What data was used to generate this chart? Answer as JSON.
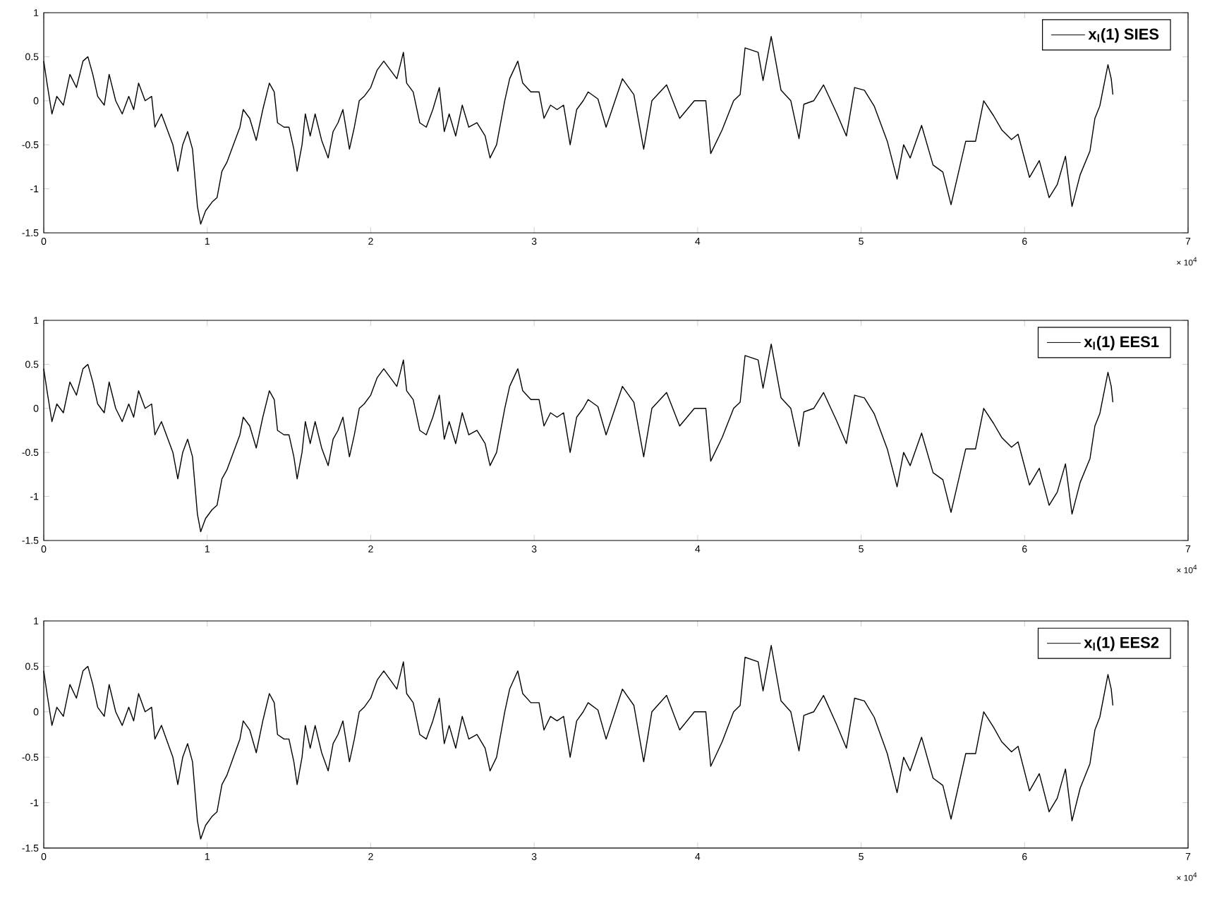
{
  "chart_data": [
    {
      "type": "line",
      "x": [
        0,
        0.02,
        0.05,
        0.08,
        0.12,
        0.16,
        0.2,
        0.24,
        0.27,
        0.3,
        0.33,
        0.37,
        0.4,
        0.44,
        0.48,
        0.52,
        0.55,
        0.58,
        0.62,
        0.66,
        0.68,
        0.72,
        0.75,
        0.79,
        0.82,
        0.85,
        0.88,
        0.91,
        0.94,
        0.96,
        0.99,
        1.03,
        1.06,
        1.09,
        1.12,
        1.16,
        1.2,
        1.22,
        1.26,
        1.3,
        1.34,
        1.38,
        1.41,
        1.43,
        1.47,
        1.5,
        1.53,
        1.55,
        1.58,
        1.6,
        1.63,
        1.66,
        1.7,
        1.74,
        1.77,
        1.8,
        1.83,
        1.87,
        1.9,
        1.93,
        1.96,
        2.0,
        2.04,
        2.08,
        2.12,
        2.16,
        2.2,
        2.22,
        2.26,
        2.3,
        2.34,
        2.38,
        2.42,
        2.45,
        2.48,
        2.52,
        2.56,
        2.6,
        2.65,
        2.7,
        2.73,
        2.77,
        2.82,
        2.85,
        2.9,
        2.93,
        2.98,
        3.03,
        3.06,
        3.1,
        3.14,
        3.18,
        3.22,
        3.26,
        3.3,
        3.33,
        3.39,
        3.44,
        3.54,
        3.61,
        3.67,
        3.72,
        3.81,
        3.89,
        3.98,
        4.05,
        4.08,
        4.15,
        4.22,
        4.26,
        4.29,
        4.37,
        4.4,
        4.45,
        4.51,
        4.57,
        4.62,
        4.65,
        4.71,
        4.77,
        4.85,
        4.91,
        4.96,
        5.02,
        5.08,
        5.16,
        5.22,
        5.26,
        5.3,
        5.37,
        5.44,
        5.5,
        5.55,
        5.6,
        5.64,
        5.7,
        5.75,
        5.81,
        5.86,
        5.92,
        5.96,
        6.03,
        6.09,
        6.15,
        6.2,
        6.25,
        6.29,
        6.34,
        6.4,
        6.43,
        6.46,
        6.51,
        6.53,
        6.54
      ],
      "series": [
        {
          "name": "x$_{l}$(1) SIES",
          "color": "#000000",
          "values": [
            0.45,
            0.2,
            -0.15,
            0.05,
            -0.05,
            0.3,
            0.15,
            0.45,
            0.5,
            0.3,
            0.05,
            -0.05,
            0.3,
            0.0,
            -0.15,
            0.05,
            -0.1,
            0.2,
            0.0,
            0.05,
            -0.3,
            -0.15,
            -0.3,
            -0.5,
            -0.8,
            -0.5,
            -0.35,
            -0.55,
            -1.2,
            -1.4,
            -1.25,
            -1.15,
            -1.1,
            -0.8,
            -0.7,
            -0.5,
            -0.3,
            -0.1,
            -0.2,
            -0.45,
            -0.1,
            0.2,
            0.1,
            -0.25,
            -0.3,
            -0.3,
            -0.55,
            -0.8,
            -0.5,
            -0.15,
            -0.4,
            -0.15,
            -0.45,
            -0.65,
            -0.35,
            -0.25,
            -0.1,
            -0.55,
            -0.3,
            0.0,
            0.05,
            0.15,
            0.35,
            0.45,
            0.35,
            0.25,
            0.55,
            0.2,
            0.1,
            -0.25,
            -0.3,
            -0.1,
            0.15,
            -0.35,
            -0.15,
            -0.4,
            -0.05,
            -0.3,
            -0.25,
            -0.4,
            -0.65,
            -0.5,
            0.0,
            0.25,
            0.45,
            0.2,
            0.1,
            0.1,
            -0.2,
            -0.05,
            -0.1,
            -0.05,
            -0.5,
            -0.1,
            0.0,
            0.1,
            0.02,
            -0.3,
            0.25,
            0.07,
            -0.55,
            0.0,
            0.18,
            -0.2,
            0.0,
            0.0,
            -0.6,
            -0.33,
            0.0,
            0.07,
            0.6,
            0.55,
            0.23,
            0.73,
            0.12,
            0.0,
            -0.43,
            -0.04,
            0.0,
            0.18,
            -0.14,
            -0.4,
            0.15,
            0.12,
            -0.06,
            -0.46,
            -0.89,
            -0.5,
            -0.65,
            -0.28,
            -0.73,
            -0.81,
            -1.18,
            -0.78,
            -0.46,
            -0.46,
            0.0,
            -0.17,
            -0.33,
            -0.44,
            -0.38,
            -0.87,
            -0.68,
            -1.1,
            -0.95,
            -0.63,
            -1.2,
            -0.84,
            -0.57,
            -0.2,
            -0.06,
            0.41,
            0.25,
            0.07
          ]
        }
      ],
      "xlim": [
        0,
        7
      ],
      "ylim": [
        -1.5,
        1
      ],
      "xticks": [
        0,
        1,
        2,
        3,
        4,
        5,
        6,
        7
      ],
      "yticks": [
        -1.5,
        -1,
        -0.5,
        0,
        0.5,
        1
      ],
      "legend": "top right",
      "annotations": [
        "× 10$^{4}$"
      ]
    },
    {
      "type": "line",
      "x": [
        0,
        0.02,
        0.05,
        0.08,
        0.12,
        0.16,
        0.2,
        0.24,
        0.27,
        0.3,
        0.33,
        0.37,
        0.4,
        0.44,
        0.48,
        0.52,
        0.55,
        0.58,
        0.62,
        0.66,
        0.68,
        0.72,
        0.75,
        0.79,
        0.82,
        0.85,
        0.88,
        0.91,
        0.94,
        0.96,
        0.99,
        1.03,
        1.06,
        1.09,
        1.12,
        1.16,
        1.2,
        1.22,
        1.26,
        1.3,
        1.34,
        1.38,
        1.41,
        1.43,
        1.47,
        1.5,
        1.53,
        1.55,
        1.58,
        1.6,
        1.63,
        1.66,
        1.7,
        1.74,
        1.77,
        1.8,
        1.83,
        1.87,
        1.9,
        1.93,
        1.96,
        2.0,
        2.04,
        2.08,
        2.12,
        2.16,
        2.2,
        2.22,
        2.26,
        2.3,
        2.34,
        2.38,
        2.42,
        2.45,
        2.48,
        2.52,
        2.56,
        2.6,
        2.65,
        2.7,
        2.73,
        2.77,
        2.82,
        2.85,
        2.9,
        2.93,
        2.98,
        3.03,
        3.06,
        3.1,
        3.14,
        3.18,
        3.22,
        3.26,
        3.3,
        3.33,
        3.39,
        3.44,
        3.54,
        3.61,
        3.67,
        3.72,
        3.81,
        3.89,
        3.98,
        4.05,
        4.08,
        4.15,
        4.22,
        4.26,
        4.29,
        4.37,
        4.4,
        4.45,
        4.51,
        4.57,
        4.62,
        4.65,
        4.71,
        4.77,
        4.85,
        4.91,
        4.96,
        5.02,
        5.08,
        5.16,
        5.22,
        5.26,
        5.3,
        5.37,
        5.44,
        5.5,
        5.55,
        5.6,
        5.64,
        5.7,
        5.75,
        5.81,
        5.86,
        5.92,
        5.96,
        6.03,
        6.09,
        6.15,
        6.2,
        6.25,
        6.29,
        6.34,
        6.4,
        6.43,
        6.46,
        6.51,
        6.53,
        6.54
      ],
      "series": [
        {
          "name": "x$_{l}$(1) EES1",
          "color": "#000000",
          "values": [
            0.45,
            0.2,
            -0.15,
            0.05,
            -0.05,
            0.3,
            0.15,
            0.45,
            0.5,
            0.3,
            0.05,
            -0.05,
            0.3,
            0.0,
            -0.15,
            0.05,
            -0.1,
            0.2,
            0.0,
            0.05,
            -0.3,
            -0.15,
            -0.3,
            -0.5,
            -0.8,
            -0.5,
            -0.35,
            -0.55,
            -1.2,
            -1.4,
            -1.25,
            -1.15,
            -1.1,
            -0.8,
            -0.7,
            -0.5,
            -0.3,
            -0.1,
            -0.2,
            -0.45,
            -0.1,
            0.2,
            0.1,
            -0.25,
            -0.3,
            -0.3,
            -0.55,
            -0.8,
            -0.5,
            -0.15,
            -0.4,
            -0.15,
            -0.45,
            -0.65,
            -0.35,
            -0.25,
            -0.1,
            -0.55,
            -0.3,
            0.0,
            0.05,
            0.15,
            0.35,
            0.45,
            0.35,
            0.25,
            0.55,
            0.2,
            0.1,
            -0.25,
            -0.3,
            -0.1,
            0.15,
            -0.35,
            -0.15,
            -0.4,
            -0.05,
            -0.3,
            -0.25,
            -0.4,
            -0.65,
            -0.5,
            0.0,
            0.25,
            0.45,
            0.2,
            0.1,
            0.1,
            -0.2,
            -0.05,
            -0.1,
            -0.05,
            -0.5,
            -0.1,
            0.0,
            0.1,
            0.02,
            -0.3,
            0.25,
            0.07,
            -0.55,
            0.0,
            0.18,
            -0.2,
            0.0,
            0.0,
            -0.6,
            -0.33,
            0.0,
            0.07,
            0.6,
            0.55,
            0.23,
            0.73,
            0.12,
            0.0,
            -0.43,
            -0.04,
            0.0,
            0.18,
            -0.14,
            -0.4,
            0.15,
            0.12,
            -0.06,
            -0.46,
            -0.89,
            -0.5,
            -0.65,
            -0.28,
            -0.73,
            -0.81,
            -1.18,
            -0.78,
            -0.46,
            -0.46,
            0.0,
            -0.17,
            -0.33,
            -0.44,
            -0.38,
            -0.87,
            -0.68,
            -1.1,
            -0.95,
            -0.63,
            -1.2,
            -0.84,
            -0.57,
            -0.2,
            -0.06,
            0.41,
            0.25,
            0.07
          ]
        }
      ],
      "xlim": [
        0,
        7
      ],
      "ylim": [
        -1.5,
        1
      ],
      "xticks": [
        0,
        1,
        2,
        3,
        4,
        5,
        6,
        7
      ],
      "yticks": [
        -1.5,
        -1,
        -0.5,
        0,
        0.5,
        1
      ],
      "legend": "top right",
      "annotations": [
        "× 10$^{4}$"
      ]
    },
    {
      "type": "line",
      "x": [
        0,
        0.02,
        0.05,
        0.08,
        0.12,
        0.16,
        0.2,
        0.24,
        0.27,
        0.3,
        0.33,
        0.37,
        0.4,
        0.44,
        0.48,
        0.52,
        0.55,
        0.58,
        0.62,
        0.66,
        0.68,
        0.72,
        0.75,
        0.79,
        0.82,
        0.85,
        0.88,
        0.91,
        0.94,
        0.96,
        0.99,
        1.03,
        1.06,
        1.09,
        1.12,
        1.16,
        1.2,
        1.22,
        1.26,
        1.3,
        1.34,
        1.38,
        1.41,
        1.43,
        1.47,
        1.5,
        1.53,
        1.55,
        1.58,
        1.6,
        1.63,
        1.66,
        1.7,
        1.74,
        1.77,
        1.8,
        1.83,
        1.87,
        1.9,
        1.93,
        1.96,
        2.0,
        2.04,
        2.08,
        2.12,
        2.16,
        2.2,
        2.22,
        2.26,
        2.3,
        2.34,
        2.38,
        2.42,
        2.45,
        2.48,
        2.52,
        2.56,
        2.6,
        2.65,
        2.7,
        2.73,
        2.77,
        2.82,
        2.85,
        2.9,
        2.93,
        2.98,
        3.03,
        3.06,
        3.1,
        3.14,
        3.18,
        3.22,
        3.26,
        3.3,
        3.33,
        3.39,
        3.44,
        3.54,
        3.61,
        3.67,
        3.72,
        3.81,
        3.89,
        3.98,
        4.05,
        4.08,
        4.15,
        4.22,
        4.26,
        4.29,
        4.37,
        4.4,
        4.45,
        4.51,
        4.57,
        4.62,
        4.65,
        4.71,
        4.77,
        4.85,
        4.91,
        4.96,
        5.02,
        5.08,
        5.16,
        5.22,
        5.26,
        5.3,
        5.37,
        5.44,
        5.5,
        5.55,
        5.6,
        5.64,
        5.7,
        5.75,
        5.81,
        5.86,
        5.92,
        5.96,
        6.03,
        6.09,
        6.15,
        6.2,
        6.25,
        6.29,
        6.34,
        6.4,
        6.43,
        6.46,
        6.51,
        6.53,
        6.54
      ],
      "series": [
        {
          "name": "x$_{l}$(1) EES2",
          "color": "#000000",
          "values": [
            0.45,
            0.2,
            -0.15,
            0.05,
            -0.05,
            0.3,
            0.15,
            0.45,
            0.5,
            0.3,
            0.05,
            -0.05,
            0.3,
            0.0,
            -0.15,
            0.05,
            -0.1,
            0.2,
            0.0,
            0.05,
            -0.3,
            -0.15,
            -0.3,
            -0.5,
            -0.8,
            -0.5,
            -0.35,
            -0.55,
            -1.2,
            -1.4,
            -1.25,
            -1.15,
            -1.1,
            -0.8,
            -0.7,
            -0.5,
            -0.3,
            -0.1,
            -0.2,
            -0.45,
            -0.1,
            0.2,
            0.1,
            -0.25,
            -0.3,
            -0.3,
            -0.55,
            -0.8,
            -0.5,
            -0.15,
            -0.4,
            -0.15,
            -0.45,
            -0.65,
            -0.35,
            -0.25,
            -0.1,
            -0.55,
            -0.3,
            0.0,
            0.05,
            0.15,
            0.35,
            0.45,
            0.35,
            0.25,
            0.55,
            0.2,
            0.1,
            -0.25,
            -0.3,
            -0.1,
            0.15,
            -0.35,
            -0.15,
            -0.4,
            -0.05,
            -0.3,
            -0.25,
            -0.4,
            -0.65,
            -0.5,
            0.0,
            0.25,
            0.45,
            0.2,
            0.1,
            0.1,
            -0.2,
            -0.05,
            -0.1,
            -0.05,
            -0.5,
            -0.1,
            0.0,
            0.1,
            0.02,
            -0.3,
            0.25,
            0.07,
            -0.55,
            0.0,
            0.18,
            -0.2,
            0.0,
            0.0,
            -0.6,
            -0.33,
            0.0,
            0.07,
            0.6,
            0.55,
            0.23,
            0.73,
            0.12,
            0.0,
            -0.43,
            -0.04,
            0.0,
            0.18,
            -0.14,
            -0.4,
            0.15,
            0.12,
            -0.06,
            -0.46,
            -0.89,
            -0.5,
            -0.65,
            -0.28,
            -0.73,
            -0.81,
            -1.18,
            -0.78,
            -0.46,
            -0.46,
            0.0,
            -0.17,
            -0.33,
            -0.44,
            -0.38,
            -0.87,
            -0.68,
            -1.1,
            -0.95,
            -0.63,
            -1.2,
            -0.84,
            -0.57,
            -0.2,
            -0.06,
            0.41,
            0.25,
            0.07
          ]
        }
      ],
      "xlim": [
        0,
        7
      ],
      "ylim": [
        -1.5,
        1
      ],
      "xticks": [
        0,
        1,
        2,
        3,
        4,
        5,
        6,
        7
      ],
      "yticks": [
        -1.5,
        -1,
        -0.5,
        0,
        0.5,
        1
      ],
      "legend": "top right",
      "annotations": [
        "× 10$^{4}$"
      ]
    }
  ]
}
